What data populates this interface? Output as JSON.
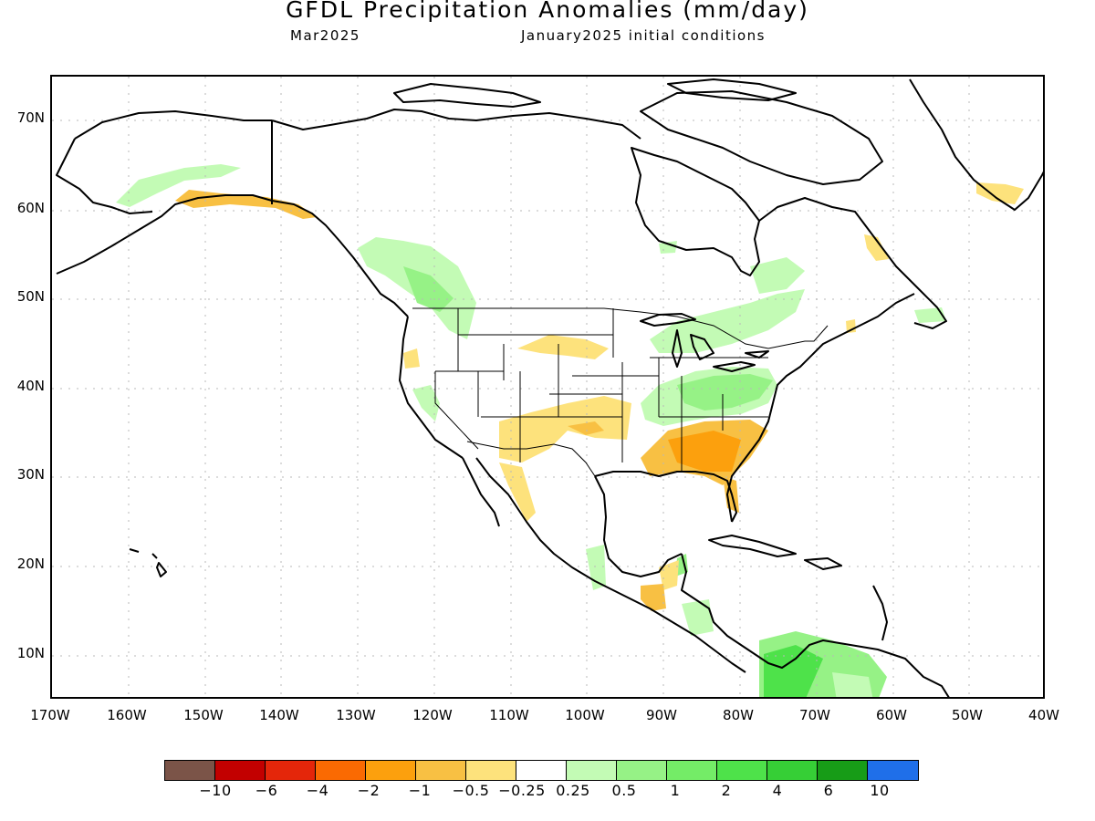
{
  "header": {
    "title": "GFDL Precipitation Anomalies (mm/day)",
    "valid_month": "Mar2025",
    "init": "January2025 initial conditions"
  },
  "axes": {
    "lat_labels": [
      "70N",
      "60N",
      "50N",
      "40N",
      "30N",
      "20N",
      "10N"
    ],
    "lon_labels": [
      "170W",
      "160W",
      "150W",
      "140W",
      "130W",
      "120W",
      "110W",
      "100W",
      "90W",
      "80W",
      "70W",
      "60W",
      "50W",
      "40W"
    ]
  },
  "colorbar": {
    "colors": [
      "#7b5448",
      "#c20000",
      "#e4260a",
      "#fa6a02",
      "#fca00d",
      "#f8c043",
      "#fde27c",
      "#ffffff",
      "#c3fbb5",
      "#96f286",
      "#74ec67",
      "#4ee24a",
      "#36cf36",
      "#179c17",
      "#1f6fe9"
    ],
    "labels": [
      "−10",
      "−6",
      "−4",
      "−2",
      "−1",
      "−0.5",
      "−0.25",
      "0.25",
      "0.5",
      "1",
      "2",
      "4",
      "6",
      "10"
    ]
  },
  "anomaly_colors": {
    "dry_light": "#fde27c",
    "dry_mid": "#f8c043",
    "dry_strong": "#fca00d",
    "wet_light": "#c3fbb5",
    "wet_mid": "#96f286",
    "wet_strong": "#4ee24a"
  }
}
